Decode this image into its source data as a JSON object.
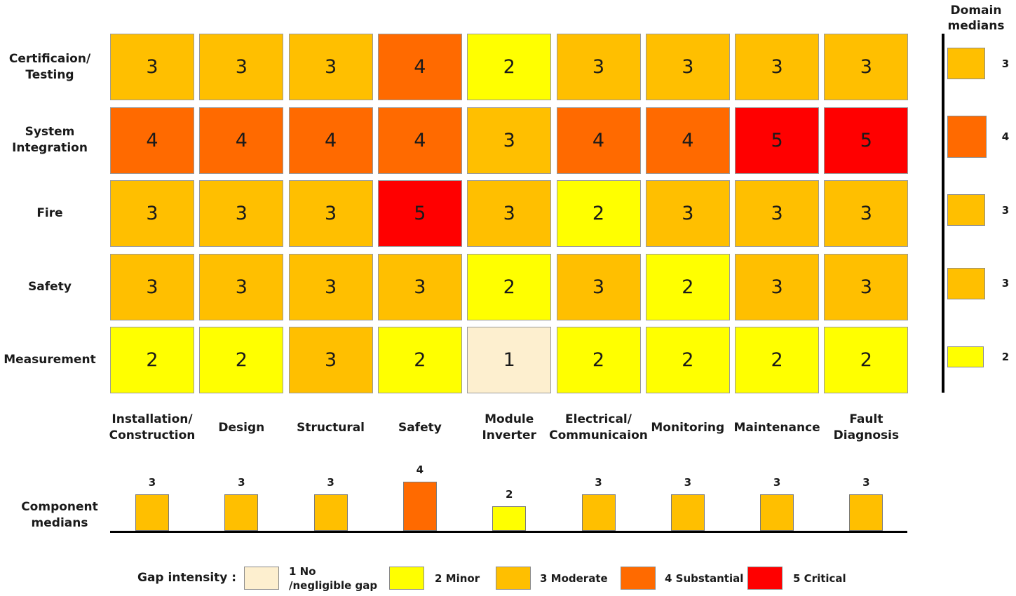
{
  "chart_data": {
    "type": "heatmap",
    "rows": [
      "Certificaion/\nTesting",
      "System\nIntegration",
      "Fire",
      "Safety",
      "Measurement"
    ],
    "columns": [
      "Installation/\nConstruction",
      "Design",
      "Structural",
      "Safety",
      "Module\nInverter",
      "Electrical/\nCommunicaion",
      "Monitoring",
      "Maintenance",
      "Fault\nDiagnosis"
    ],
    "values": [
      [
        3,
        3,
        3,
        4,
        2,
        3,
        3,
        3,
        3
      ],
      [
        4,
        4,
        4,
        4,
        3,
        4,
        4,
        5,
        5
      ],
      [
        3,
        3,
        3,
        5,
        3,
        2,
        3,
        3,
        3
      ],
      [
        3,
        3,
        3,
        3,
        2,
        3,
        2,
        3,
        3
      ],
      [
        2,
        2,
        3,
        2,
        1,
        2,
        2,
        2,
        2
      ]
    ],
    "domain_medians_title": "Domain\nmedians",
    "domain_medians": [
      3,
      4,
      3,
      3,
      2
    ],
    "component_medians_title": "Component\nmedians",
    "component_medians": [
      3,
      3,
      3,
      4,
      2,
      3,
      3,
      3,
      3
    ],
    "legend_title": "Gap intensity :",
    "legend": [
      {
        "level": 1,
        "label": "1 No\n/negligible gap",
        "color": "#fdefcf"
      },
      {
        "level": 2,
        "label": "2 Minor",
        "color": "#ffff00"
      },
      {
        "level": 3,
        "label": "3 Moderate",
        "color": "#ffbf00"
      },
      {
        "level": 4,
        "label": "4 Substantial",
        "color": "#ff6a00"
      },
      {
        "level": 5,
        "label": "5 Critical",
        "color": "#ff0000"
      }
    ]
  }
}
